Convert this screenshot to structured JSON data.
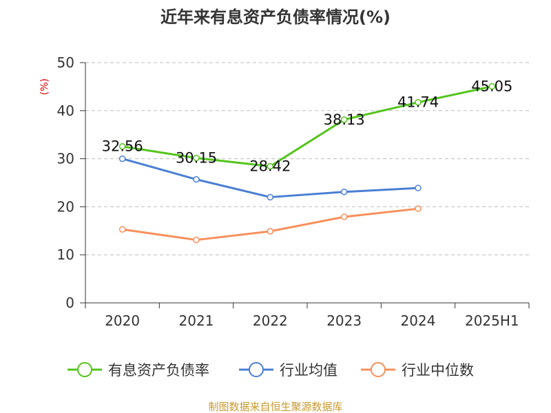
{
  "chart_data": {
    "type": "line",
    "title": "近年来有息资产负债率情况(%)",
    "ylabel": "(%)",
    "xlabel": "",
    "categories": [
      "2020",
      "2021",
      "2022",
      "2023",
      "2024",
      "2025H1"
    ],
    "ylim": [
      0,
      50
    ],
    "yticks": [
      0,
      10,
      20,
      30,
      40,
      50
    ],
    "grid": true,
    "legend_position": "bottom",
    "series": [
      {
        "name": "有息资产负债率",
        "color": "#52c41a",
        "values": [
          32.56,
          30.15,
          28.42,
          38.13,
          41.74,
          45.05
        ],
        "data_labels": [
          "32.56",
          "30.15",
          "28.42",
          "38.13",
          "41.74",
          "45.05"
        ]
      },
      {
        "name": "行业均值",
        "color": "#4a7fd4",
        "values": [
          30.0,
          25.7,
          22.0,
          23.1,
          23.9,
          null
        ]
      },
      {
        "name": "行业中位数",
        "color": "#f78f5a",
        "values": [
          15.3,
          13.1,
          14.9,
          17.9,
          19.6,
          null
        ]
      }
    ],
    "source": "制图数据来自恒生聚源数据库"
  }
}
